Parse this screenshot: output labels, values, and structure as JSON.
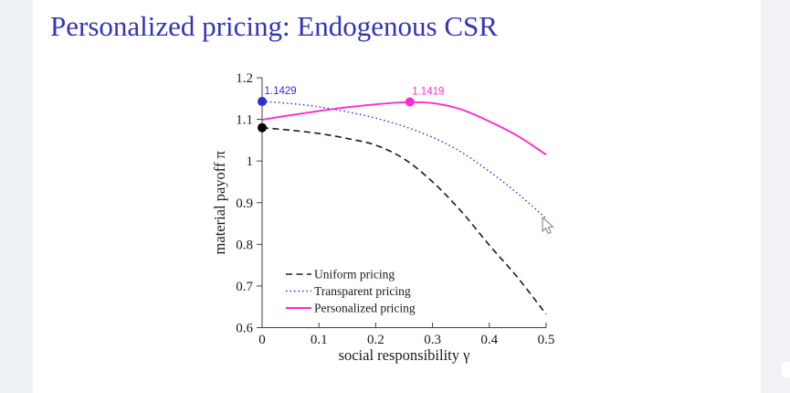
{
  "slide": {
    "title": "Personalized pricing: Endogenous CSR"
  },
  "colors": {
    "title_blue": "#3434b8",
    "axis": "#404040",
    "uniform_black": "#1a1a1a",
    "transparent_blue": "#2e2ed6",
    "personalized_magenta": "#ff2ccd"
  },
  "chart_data": {
    "type": "line",
    "title": "",
    "xlabel": "social responsibility γ",
    "ylabel": "material payoff π",
    "xlim": [
      0,
      0.5
    ],
    "ylim": [
      0.6,
      1.2
    ],
    "xticks": [
      0,
      0.1,
      0.2,
      0.3,
      0.4,
      0.5
    ],
    "xtick_labels": [
      "0",
      "0.1",
      "0.2",
      "0.3",
      "0.4",
      "0.5"
    ],
    "yticks": [
      0.6,
      0.7,
      0.8,
      0.9,
      1.0,
      1.1,
      1.2
    ],
    "ytick_labels": [
      "0.6",
      "0.7",
      "0.8",
      "0.9",
      "1",
      "1.1",
      "1.2"
    ],
    "grid": false,
    "legend_position": "inside lower-left",
    "x": [
      0,
      0.05,
      0.1,
      0.15,
      0.2,
      0.25,
      0.3,
      0.35,
      0.4,
      0.45,
      0.5
    ],
    "series": [
      {
        "name": "Uniform pricing",
        "style": "dashed",
        "color": "#1a1a1a",
        "width": 1.6,
        "values": [
          1.08,
          1.074,
          1.066,
          1.054,
          1.038,
          1.005,
          0.95,
          0.88,
          0.798,
          0.72,
          0.632
        ]
      },
      {
        "name": "Transparent pricing",
        "style": "dotted",
        "color": "#2e2ed6",
        "width": 1.4,
        "values": [
          1.1429,
          1.138,
          1.13,
          1.118,
          1.103,
          1.083,
          1.057,
          1.022,
          0.975,
          0.922,
          0.862
        ]
      },
      {
        "name": "Personalized pricing",
        "style": "solid",
        "color": "#ff2ccd",
        "width": 1.9,
        "values": [
          1.099,
          1.11,
          1.12,
          1.129,
          1.136,
          1.141,
          1.139,
          1.124,
          1.095,
          1.06,
          1.015
        ]
      }
    ],
    "markers": [
      {
        "x": 0,
        "y": 1.1429,
        "color": "#2e2ed6",
        "label": "1.1429"
      },
      {
        "x": 0.26,
        "y": 1.1419,
        "color": "#ff2ccd",
        "label": "1.1419"
      },
      {
        "x": 0,
        "y": 1.08,
        "color": "#000000",
        "label": ""
      }
    ]
  }
}
